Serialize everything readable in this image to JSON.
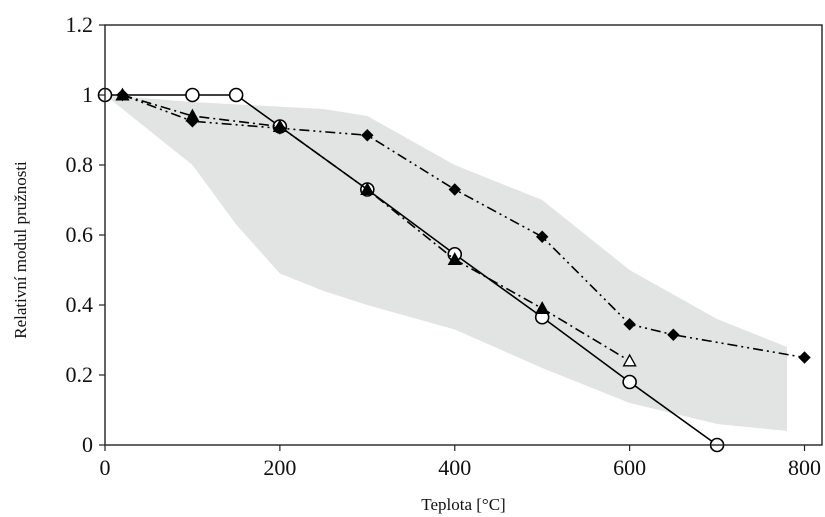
{
  "chart_data": {
    "type": "line",
    "title": "",
    "xlabel": "Teplota [°C]",
    "ylabel": "Relativní modul pružnosti",
    "xlim": [
      0,
      820
    ],
    "ylim": [
      0,
      1.2
    ],
    "x_ticks": [
      0,
      200,
      400,
      600,
      800
    ],
    "x_tick_labels": [
      "0",
      "200",
      "400",
      "600",
      "800"
    ],
    "y_ticks": [
      0,
      0.2,
      0.4,
      0.6,
      0.8,
      1.0,
      1.2
    ],
    "y_tick_labels": [
      "0",
      "0.2",
      "0.4",
      "0.6",
      "0.8",
      "1",
      "1.2"
    ],
    "grid": false,
    "legend": "none",
    "band": {
      "color": "#e2e4e4",
      "upper": [
        [
          0,
          1.0
        ],
        [
          100,
          0.98
        ],
        [
          250,
          0.96
        ],
        [
          300,
          0.94
        ],
        [
          400,
          0.8
        ],
        [
          500,
          0.7
        ],
        [
          600,
          0.5
        ],
        [
          700,
          0.36
        ],
        [
          780,
          0.28
        ]
      ],
      "lower": [
        [
          0,
          1.0
        ],
        [
          100,
          0.8
        ],
        [
          150,
          0.63
        ],
        [
          200,
          0.49
        ],
        [
          250,
          0.44
        ],
        [
          300,
          0.4
        ],
        [
          400,
          0.33
        ],
        [
          500,
          0.22
        ],
        [
          600,
          0.12
        ],
        [
          700,
          0.06
        ],
        [
          780,
          0.04
        ]
      ]
    },
    "series": [
      {
        "color": "#000000",
        "line": "solid",
        "marker": "circle-open",
        "x": [
          0,
          100,
          150,
          200,
          300,
          400,
          500,
          600,
          700
        ],
        "y": [
          1.0,
          1.0,
          1.0,
          0.91,
          0.73,
          0.545,
          0.365,
          0.18,
          0.0
        ]
      },
      {
        "color": "#000000",
        "line": "dashdot",
        "marker": "triangle",
        "x": [
          20,
          100,
          200,
          300,
          400,
          500,
          600
        ],
        "y": [
          1.0,
          0.94,
          0.91,
          0.73,
          0.53,
          0.39,
          0.24
        ]
      },
      {
        "color": "#000000",
        "line": "dashdotdot",
        "marker": "diamond-filled",
        "x": [
          20,
          100,
          200,
          300,
          400,
          500,
          600,
          650,
          800
        ],
        "y": [
          1.0,
          0.925,
          0.905,
          0.885,
          0.73,
          0.595,
          0.345,
          0.315,
          0.25
        ]
      }
    ]
  }
}
